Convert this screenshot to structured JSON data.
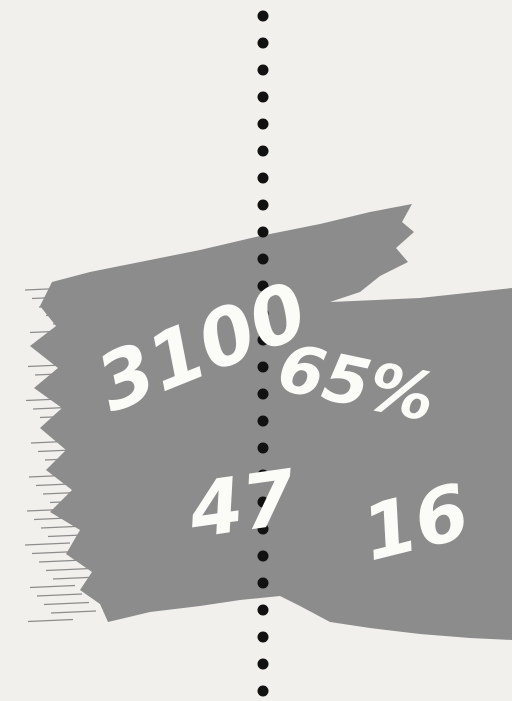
{
  "labels": [
    "3100",
    "65%",
    "47",
    "16"
  ]
}
